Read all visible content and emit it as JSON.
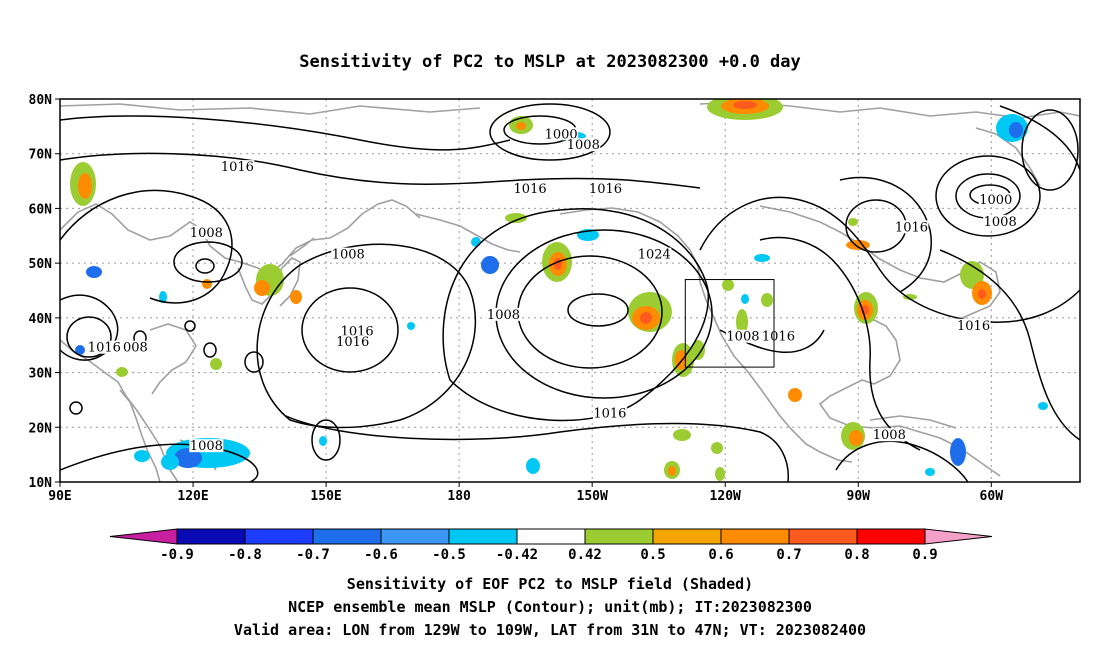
{
  "figure": {
    "title": "Sensitivity of PC2 to MSLP at 2023082300 +0.0 day",
    "caption_lines": [
      "Sensitivity of EOF PC2 to MSLP field (Shaded)",
      "NCEP ensemble mean MSLP (Contour); unit(mb); IT:2023082300",
      "Valid area: LON from 129W to 109W, LAT from 31N to 47N; VT: 2023082400"
    ]
  },
  "map": {
    "lon_ticks": [
      {
        "lon": 90,
        "label": "90E"
      },
      {
        "lon": 120,
        "label": "120E"
      },
      {
        "lon": 150,
        "label": "150E"
      },
      {
        "lon": 180,
        "label": "180"
      },
      {
        "lon": 210,
        "label": "150W"
      },
      {
        "lon": 240,
        "label": "120W"
      },
      {
        "lon": 270,
        "label": "90W"
      },
      {
        "lon": 300,
        "label": "60W"
      }
    ],
    "lat_ticks": [
      {
        "lat": 80,
        "label": "80N"
      },
      {
        "lat": 70,
        "label": "70N"
      },
      {
        "lat": 60,
        "label": "60N"
      },
      {
        "lat": 50,
        "label": "50N"
      },
      {
        "lat": 40,
        "label": "40N"
      },
      {
        "lat": 30,
        "label": "30N"
      },
      {
        "lat": 20,
        "label": "20N"
      },
      {
        "lat": 10,
        "label": "10N"
      }
    ],
    "lon_range": [
      90,
      320
    ],
    "lat_range": [
      10,
      80
    ],
    "grid": "dotted",
    "valid_box": {
      "lon": [
        231,
        251
      ],
      "lat": [
        31,
        47
      ]
    },
    "contour_labels": [
      {
        "text": "1016",
        "lon": 130,
        "lat": 67
      },
      {
        "text": "1000",
        "lon": 203,
        "lat": 73
      },
      {
        "text": "1008",
        "lon": 208,
        "lat": 71
      },
      {
        "text": "1016",
        "lon": 196,
        "lat": 63
      },
      {
        "text": "1016",
        "lon": 213,
        "lat": 63
      },
      {
        "text": "1008",
        "lon": 123,
        "lat": 55
      },
      {
        "text": "1008",
        "lon": 155,
        "lat": 51
      },
      {
        "text": "1024",
        "lon": 224,
        "lat": 51
      },
      {
        "text": "1008",
        "lon": 190,
        "lat": 40
      },
      {
        "text": "1016",
        "lon": 157,
        "lat": 37
      },
      {
        "text": "1016",
        "lon": 156,
        "lat": 35
      },
      {
        "text": "1016",
        "lon": 100,
        "lat": 34
      },
      {
        "text": "008",
        "lon": 107,
        "lat": 34
      },
      {
        "text": "1008",
        "lon": 244,
        "lat": 36
      },
      {
        "text": "1016",
        "lon": 252,
        "lat": 36
      },
      {
        "text": "1016",
        "lon": 214,
        "lat": 22
      },
      {
        "text": "1008",
        "lon": 123,
        "lat": 16
      },
      {
        "text": "1016",
        "lon": 282,
        "lat": 56
      },
      {
        "text": "1000",
        "lon": 301,
        "lat": 61
      },
      {
        "text": "1008",
        "lon": 302,
        "lat": 57
      },
      {
        "text": "1016",
        "lon": 296,
        "lat": 38
      },
      {
        "text": "1008",
        "lon": 277,
        "lat": 18
      }
    ]
  },
  "colorbar": {
    "labels": [
      "-0.9",
      "-0.8",
      "-0.7",
      "-0.6",
      "-0.5",
      "-0.42",
      "0.42",
      "0.5",
      "0.6",
      "0.7",
      "0.8",
      "0.9"
    ],
    "colors": [
      "#0a0ab4",
      "#1e3cff",
      "#1e6eeb",
      "#3c96f5",
      "#00c8f5",
      "#ffffff",
      "#9bcd32",
      "#f5a500",
      "#ff8c00",
      "#ff5a1e",
      "#ff0000"
    ],
    "under_color": "#c81ea0",
    "over_color": "#f5a0c8"
  }
}
